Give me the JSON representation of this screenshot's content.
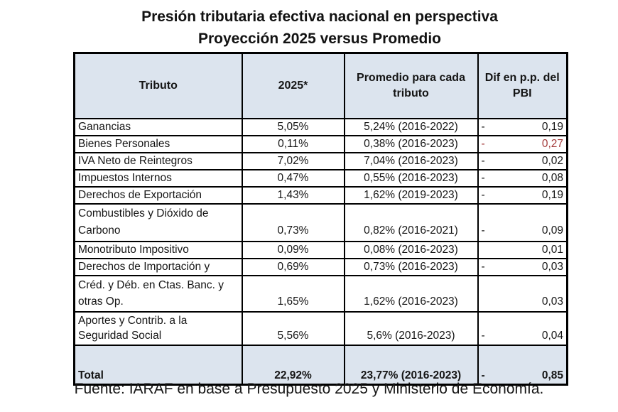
{
  "title": {
    "line1": "Presión tributaria efectiva nacional en perspectiva",
    "line2": "Proyección 2025 versus Promedio"
  },
  "table": {
    "headers": {
      "tributo": "Tributo",
      "y2025": "2025*",
      "promedio": "Promedio para cada tributo",
      "dif": "Dif en p.p. del PBI"
    },
    "rows": [
      {
        "tributo": "Ganancias",
        "y2025": "5,05%",
        "promedio": "5,24% (2016-2022)",
        "dif_sign": "-",
        "dif_value": "0,19"
      },
      {
        "tributo": "Bienes Personales",
        "y2025": "0,11%",
        "promedio": "0,38% (2016-2023)",
        "dif_sign": "-",
        "dif_value": "0,27"
      },
      {
        "tributo": "IVA Neto de Reintegros",
        "y2025": "7,02%",
        "promedio": "7,04% (2016-2023)",
        "dif_sign": "-",
        "dif_value": "0,02"
      },
      {
        "tributo": "Impuestos Internos",
        "y2025": "0,47%",
        "promedio": "0,55% (2016-2023)",
        "dif_sign": "-",
        "dif_value": "0,08"
      },
      {
        "tributo": "Derechos de Exportación",
        "y2025": "1,43%",
        "promedio": "1,62% (2019-2023)",
        "dif_sign": "-",
        "dif_value": "0,19"
      },
      {
        "tributo": "Combustibles y Dióxido de Carbono",
        "y2025": "0,73%",
        "promedio": "0,82% (2016-2021)",
        "dif_sign": "-",
        "dif_value": "0,09"
      },
      {
        "tributo": "Monotributo Impositivo",
        "y2025": "0,09%",
        "promedio": "0,08% (2016-2023)",
        "dif_sign": "",
        "dif_value": "0,01"
      },
      {
        "tributo": "Derechos de Importación y",
        "y2025": "0,69%",
        "promedio": "0,73% (2016-2023)",
        "dif_sign": "-",
        "dif_value": "0,03"
      },
      {
        "tributo": "Créd. y Déb. en Ctas. Banc. y otras Op.",
        "y2025": "1,65%",
        "promedio": "1,62% (2016-2023)",
        "dif_sign": "",
        "dif_value": "0,03"
      },
      {
        "tributo": "Aportes y Contrib. a la Seguridad Social",
        "y2025": "5,56%",
        "promedio": "5,6% (2016-2023)",
        "dif_sign": "-",
        "dif_value": "0,04"
      },
      {
        "tributo": "Total",
        "y2025": "22,92%",
        "promedio": "23,77% (2016-2023)",
        "dif_sign": "-",
        "dif_value": "0,85"
      }
    ]
  },
  "footer": {
    "source": "Fuente: IARAF en base a Presupuesto 2025 y Ministerio de Economía."
  },
  "colors": {
    "header_bg": "#dce4ee",
    "total_row_bg": "#dce4ee",
    "negative_highlight": "#a33a3a",
    "border": "#000000",
    "text": "#151515",
    "page_bg": "#ffffff"
  },
  "chart_data": {
    "type": "table",
    "title": "Presión tributaria efectiva nacional en perspectiva — Proyección 2025 versus Promedio",
    "columns": [
      "Tributo",
      "2025*",
      "Promedio para cada tributo",
      "Dif en p.p. del PBI"
    ],
    "rows": [
      {
        "tributo": "Ganancias",
        "pct_2025": 5.05,
        "promedio_pct": 5.24,
        "periodo": "2016-2022",
        "dif_pp_pbi": -0.19
      },
      {
        "tributo": "Bienes Personales",
        "pct_2025": 0.11,
        "promedio_pct": 0.38,
        "periodo": "2016-2023",
        "dif_pp_pbi": -0.27
      },
      {
        "tributo": "IVA Neto de Reintegros",
        "pct_2025": 7.02,
        "promedio_pct": 7.04,
        "periodo": "2016-2023",
        "dif_pp_pbi": -0.02
      },
      {
        "tributo": "Impuestos Internos",
        "pct_2025": 0.47,
        "promedio_pct": 0.55,
        "periodo": "2016-2023",
        "dif_pp_pbi": -0.08
      },
      {
        "tributo": "Derechos de Exportación",
        "pct_2025": 1.43,
        "promedio_pct": 1.62,
        "periodo": "2019-2023",
        "dif_pp_pbi": -0.19
      },
      {
        "tributo": "Combustibles y Dióxido de Carbono",
        "pct_2025": 0.73,
        "promedio_pct": 0.82,
        "periodo": "2016-2021",
        "dif_pp_pbi": -0.09
      },
      {
        "tributo": "Monotributo Impositivo",
        "pct_2025": 0.09,
        "promedio_pct": 0.08,
        "periodo": "2016-2023",
        "dif_pp_pbi": 0.01
      },
      {
        "tributo": "Derechos de Importación y",
        "pct_2025": 0.69,
        "promedio_pct": 0.73,
        "periodo": "2016-2023",
        "dif_pp_pbi": -0.03
      },
      {
        "tributo": "Créd. y Déb. en Ctas. Banc. y otras Op.",
        "pct_2025": 1.65,
        "promedio_pct": 1.62,
        "periodo": "2016-2023",
        "dif_pp_pbi": 0.03
      },
      {
        "tributo": "Aportes y Contrib. a la Seguridad Social",
        "pct_2025": 5.56,
        "promedio_pct": 5.6,
        "periodo": "2016-2023",
        "dif_pp_pbi": -0.04
      },
      {
        "tributo": "Total",
        "pct_2025": 22.92,
        "promedio_pct": 23.77,
        "periodo": "2016-2023",
        "dif_pp_pbi": -0.85
      }
    ],
    "source": "Fuente: IARAF en base a Presupuesto 2025 y Ministerio de Economía."
  }
}
